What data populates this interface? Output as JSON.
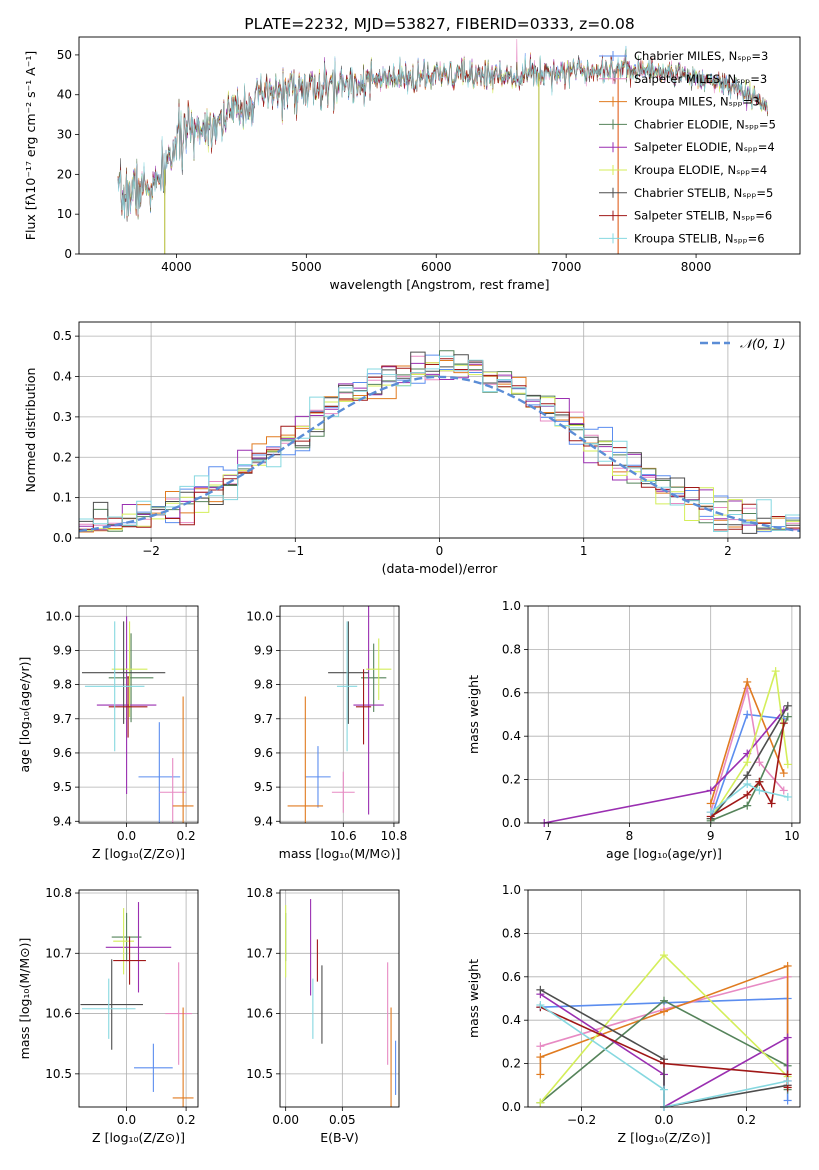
{
  "colors": {
    "Chabrier MILES": "#5b8def",
    "Salpeter MILES": "#e78ac3",
    "Kroupa MILES": "#e07b20",
    "Chabrier ELODIE": "#55835a",
    "Salpeter ELODIE": "#9a2fb1",
    "Kroupa ELODIE": "#d4ee5a",
    "Chabrier STELIB": "#4d4d4d",
    "Salpeter STELIB": "#a01818",
    "Kroupa STELIB": "#86d8e0"
  },
  "chart_data": [
    {
      "id": "spectrum",
      "type": "line",
      "title": "PLATE=2232, MJD=53827, FIBERID=0333, z=0.08",
      "xlabel": "wavelength [Angstrom, rest frame]",
      "ylabel": "Flux [fλ10⁻¹⁷ erg cm⁻² s⁻¹ A⁻¹]",
      "xlim": [
        3250,
        8800
      ],
      "ylim": [
        0,
        54.5
      ],
      "xticks": [
        4000,
        5000,
        6000,
        7000,
        8000
      ],
      "yticks": [
        0,
        10,
        20,
        30,
        40,
        50
      ],
      "grid": false,
      "legend_position": "right",
      "series": [
        {
          "name": "Chabrier MILES, Nₛₚₚ=3"
        },
        {
          "name": "Salpeter MILES, Nₛₚₚ=3"
        },
        {
          "name": "Kroupa MILES, Nₛₚₚ=3"
        },
        {
          "name": "Chabrier ELODIE, Nₛₚₚ=5"
        },
        {
          "name": "Salpeter ELODIE, Nₛₚₚ=4"
        },
        {
          "name": "Kroupa ELODIE, Nₛₚₚ=4"
        },
        {
          "name": "Chabrier STELIB, Nₛₚₚ=5"
        },
        {
          "name": "Salpeter STELIB, Nₛₚₚ=6"
        },
        {
          "name": "Kroupa STELIB, Nₛₚₚ=6"
        }
      ],
      "continuum": [
        [
          3550,
          14
        ],
        [
          3700,
          16
        ],
        [
          3850,
          17
        ],
        [
          3950,
          24
        ],
        [
          4000,
          28
        ],
        [
          4100,
          31
        ],
        [
          4300,
          33
        ],
        [
          4500,
          37
        ],
        [
          4700,
          40
        ],
        [
          4900,
          41.5
        ],
        [
          5100,
          41
        ],
        [
          5300,
          43
        ],
        [
          5500,
          43.5
        ],
        [
          5800,
          44
        ],
        [
          6000,
          44.5
        ],
        [
          6200,
          45
        ],
        [
          6500,
          45
        ],
        [
          6800,
          45.5
        ],
        [
          7000,
          46
        ],
        [
          7200,
          46.5
        ],
        [
          7400,
          46.5
        ],
        [
          7700,
          46
        ],
        [
          8000,
          44.5
        ],
        [
          8300,
          42
        ],
        [
          8550,
          37
        ]
      ],
      "spikes_down": [
        3910,
        6790,
        7400
      ],
      "spike_up": 6620
    },
    {
      "id": "residuals",
      "type": "step",
      "xlabel": "(data-model)/error",
      "ylabel": "Normed distribution",
      "xlim": [
        -2.5,
        2.5
      ],
      "ylim": [
        0,
        0.535
      ],
      "xticks": [
        -2,
        -1,
        0,
        1,
        2
      ],
      "yticks": [
        0.0,
        0.1,
        0.2,
        0.3,
        0.4,
        0.5
      ],
      "grid": true,
      "legend_position": "top-right",
      "reference_curve": {
        "name": "𝒩(0, 1)",
        "type": "gaussian",
        "mean": 0,
        "sigma": 1
      },
      "bin_width": 0.1,
      "bin_start": -2.5
    },
    {
      "id": "age-vs-Z",
      "type": "errorbar",
      "xlabel": "Z [log₁₀(Z/Z⊙)]",
      "ylabel": "age  [log₁₀(age/yr)]",
      "xlim": [
        -0.16,
        0.24
      ],
      "ylim": [
        9.395,
        10.03
      ],
      "xticks": [
        0.0,
        0.2
      ],
      "yticks": [
        9.4,
        9.5,
        9.6,
        9.7,
        9.8,
        9.9,
        10.0
      ],
      "grid": true,
      "points": [
        {
          "series": "Chabrier MILES",
          "x": 0.11,
          "y": 9.53,
          "xerr": 0.07,
          "yerr": 0.16
        },
        {
          "series": "Salpeter MILES",
          "x": 0.155,
          "y": 9.485,
          "xerr": 0.045,
          "yerr": 0.1
        },
        {
          "series": "Kroupa MILES",
          "x": 0.19,
          "y": 9.445,
          "xerr": 0.035,
          "yerr": 0.32
        },
        {
          "series": "Chabrier ELODIE",
          "x": 0.015,
          "y": 9.82,
          "xerr": 0.075,
          "yerr": 0.13
        },
        {
          "series": "Salpeter ELODIE",
          "x": 0.0,
          "y": 9.74,
          "xerr": 0.1,
          "yerr": 0.26
        },
        {
          "series": "Kroupa ELODIE",
          "x": 0.01,
          "y": 9.845,
          "xerr": 0.06,
          "yerr": 0.14
        },
        {
          "series": "Chabrier STELIB",
          "x": -0.01,
          "y": 9.835,
          "xerr": 0.14,
          "yerr": 0.15
        },
        {
          "series": "Salpeter STELIB",
          "x": 0.005,
          "y": 9.735,
          "xerr": 0.065,
          "yerr": 0.09
        },
        {
          "series": "Kroupa STELIB",
          "x": -0.04,
          "y": 9.795,
          "xerr": 0.1,
          "yerr": 0.19
        }
      ]
    },
    {
      "id": "age-vs-mass",
      "type": "errorbar",
      "xlabel": "mass [log₁₀(M/M⊙)]",
      "xlim": [
        10.35,
        10.82
      ],
      "ylim": [
        9.395,
        10.03
      ],
      "xticks": [
        10.6,
        10.8
      ],
      "yticks": [
        9.4,
        9.5,
        9.6,
        9.7,
        9.8,
        9.9,
        10.0
      ],
      "grid": true,
      "points": [
        {
          "series": "Chabrier MILES",
          "x": 10.5,
          "y": 9.53,
          "xerr": 0.05,
          "yerr": 0.09
        },
        {
          "series": "Salpeter MILES",
          "x": 10.6,
          "y": 9.485,
          "xerr": 0.045,
          "yerr": 0.06
        },
        {
          "series": "Kroupa MILES",
          "x": 10.45,
          "y": 9.445,
          "xerr": 0.07,
          "yerr": 0.32
        },
        {
          "series": "Chabrier ELODIE",
          "x": 10.72,
          "y": 9.82,
          "xerr": 0.05,
          "yerr": 0.1
        },
        {
          "series": "Salpeter ELODIE",
          "x": 10.7,
          "y": 9.74,
          "xerr": 0.06,
          "yerr": 0.32
        },
        {
          "series": "Kroupa ELODIE",
          "x": 10.74,
          "y": 9.845,
          "xerr": 0.05,
          "yerr": 0.09
        },
        {
          "series": "Chabrier STELIB",
          "x": 10.62,
          "y": 9.835,
          "xerr": 0.08,
          "yerr": 0.15
        },
        {
          "series": "Salpeter STELIB",
          "x": 10.68,
          "y": 9.735,
          "xerr": 0.03,
          "yerr": 0.11
        },
        {
          "series": "Kroupa STELIB",
          "x": 10.615,
          "y": 9.795,
          "xerr": 0.04,
          "yerr": 0.19
        }
      ]
    },
    {
      "id": "weight-vs-age",
      "type": "line",
      "xlabel": "age  [log₁₀(age/yr)]",
      "ylabel": "mass weight",
      "xlim": [
        6.75,
        10.1
      ],
      "ylim": [
        0,
        1.0
      ],
      "xticks": [
        7,
        8,
        9,
        10
      ],
      "yticks": [
        0.0,
        0.2,
        0.4,
        0.6,
        0.8,
        1.0
      ],
      "grid": true,
      "series": [
        {
          "series": "Chabrier MILES",
          "points": [
            [
              9.0,
              0.02
            ],
            [
              9.45,
              0.5
            ],
            [
              9.9,
              0.48
            ]
          ]
        },
        {
          "series": "Salpeter MILES",
          "points": [
            [
              9.0,
              0.05
            ],
            [
              9.45,
              0.62
            ],
            [
              9.6,
              0.28
            ],
            [
              9.9,
              0.15
            ]
          ]
        },
        {
          "series": "Kroupa MILES",
          "points": [
            [
              9.0,
              0.09
            ],
            [
              9.45,
              0.65
            ],
            [
              9.9,
              0.23
            ]
          ]
        },
        {
          "series": "Chabrier ELODIE",
          "points": [
            [
              9.0,
              0.01
            ],
            [
              9.45,
              0.08
            ],
            [
              9.6,
              0.19
            ],
            [
              9.95,
              0.49
            ]
          ]
        },
        {
          "series": "Salpeter ELODIE",
          "points": [
            [
              6.95,
              0.0
            ],
            [
              9.0,
              0.15
            ],
            [
              9.45,
              0.32
            ],
            [
              9.9,
              0.52
            ]
          ]
        },
        {
          "series": "Kroupa ELODIE",
          "points": [
            [
              9.0,
              0.02
            ],
            [
              9.45,
              0.28
            ],
            [
              9.8,
              0.7
            ],
            [
              9.95,
              0.27
            ]
          ]
        },
        {
          "series": "Chabrier STELIB",
          "points": [
            [
              9.0,
              0.02
            ],
            [
              9.45,
              0.22
            ],
            [
              9.95,
              0.54
            ]
          ]
        },
        {
          "series": "Salpeter STELIB",
          "points": [
            [
              9.0,
              0.03
            ],
            [
              9.45,
              0.13
            ],
            [
              9.6,
              0.19
            ],
            [
              9.75,
              0.09
            ],
            [
              9.9,
              0.46
            ]
          ]
        },
        {
          "series": "Kroupa STELIB",
          "points": [
            [
              9.0,
              0.05
            ],
            [
              9.45,
              0.18
            ],
            [
              9.6,
              0.15
            ],
            [
              9.95,
              0.12
            ]
          ]
        }
      ]
    },
    {
      "id": "mass-vs-Z",
      "type": "errorbar",
      "xlabel": "Z [log₁₀(Z/Z⊙)]",
      "ylabel": "mass [log₁₀(M/M⊙)]",
      "xlim": [
        -0.16,
        0.24
      ],
      "ylim": [
        10.445,
        10.805
      ],
      "xticks": [
        0.0,
        0.2
      ],
      "yticks": [
        10.5,
        10.6,
        10.7,
        10.8
      ],
      "grid": true,
      "points": [
        {
          "series": "Chabrier MILES",
          "x": 0.09,
          "y": 10.51,
          "xerr": 0.065,
          "yerr": 0.04
        },
        {
          "series": "Salpeter MILES",
          "x": 0.175,
          "y": 10.6,
          "xerr": 0.045,
          "yerr": 0.085
        },
        {
          "series": "Kroupa MILES",
          "x": 0.19,
          "y": 10.46,
          "xerr": 0.035,
          "yerr": 0.15
        },
        {
          "series": "Chabrier ELODIE",
          "x": 0.0,
          "y": 10.727,
          "xerr": 0.05,
          "yerr": 0.04
        },
        {
          "series": "Salpeter ELODIE",
          "x": 0.04,
          "y": 10.71,
          "xerr": 0.11,
          "yerr": 0.075
        },
        {
          "series": "Kroupa ELODIE",
          "x": -0.01,
          "y": 10.72,
          "xerr": 0.035,
          "yerr": 0.055
        },
        {
          "series": "Chabrier STELIB",
          "x": -0.05,
          "y": 10.615,
          "xerr": 0.105,
          "yerr": 0.075
        },
        {
          "series": "Salpeter STELIB",
          "x": 0.01,
          "y": 10.688,
          "xerr": 0.055,
          "yerr": 0.04
        },
        {
          "series": "Kroupa STELIB",
          "x": -0.06,
          "y": 10.608,
          "xerr": 0.09,
          "yerr": 0.05
        }
      ]
    },
    {
      "id": "mass-vs-EBV",
      "type": "errorbar",
      "xlabel": "E(B-V)",
      "xlim": [
        -0.005,
        0.1
      ],
      "ylim": [
        10.445,
        10.805
      ],
      "xticks": [
        0.0,
        0.05
      ],
      "yticks": [
        10.5,
        10.6,
        10.7,
        10.8
      ],
      "grid": true,
      "points": [
        {
          "series": "Chabrier MILES",
          "x": 0.097,
          "y": 10.51,
          "xerr": 0,
          "yerr": 0.045
        },
        {
          "series": "Salpeter MILES",
          "x": 0.09,
          "y": 10.6,
          "xerr": 0,
          "yerr": 0.085
        },
        {
          "series": "Kroupa MILES",
          "x": 0.093,
          "y": 10.46,
          "xerr": 0,
          "yerr": 0.15
        },
        {
          "series": "Chabrier ELODIE",
          "x": 0.0,
          "y": 10.727,
          "xerr": 0,
          "yerr": 0.04
        },
        {
          "series": "Salpeter ELODIE",
          "x": 0.022,
          "y": 10.71,
          "xerr": 0,
          "yerr": 0.08
        },
        {
          "series": "Kroupa ELODIE",
          "x": 0.0,
          "y": 10.72,
          "xerr": 0,
          "yerr": 0.06
        },
        {
          "series": "Chabrier STELIB",
          "x": 0.032,
          "y": 10.615,
          "xerr": 0,
          "yerr": 0.065
        },
        {
          "series": "Salpeter STELIB",
          "x": 0.028,
          "y": 10.688,
          "xerr": 0,
          "yerr": 0.035
        },
        {
          "series": "Kroupa STELIB",
          "x": 0.024,
          "y": 10.608,
          "xerr": 0,
          "yerr": 0.05
        }
      ]
    },
    {
      "id": "weight-vs-Z",
      "type": "line",
      "xlabel": "Z [log₁₀(Z/Z⊙)]",
      "ylabel": "mass weight",
      "xlim": [
        -0.33,
        0.33
      ],
      "ylim": [
        0,
        1.0
      ],
      "xticks": [
        -0.2,
        0.0,
        0.2
      ],
      "yticks": [
        0.0,
        0.2,
        0.4,
        0.6,
        0.8,
        1.0
      ],
      "grid": true,
      "series": [
        {
          "series": "Chabrier MILES",
          "points": [
            [
              -0.3,
              0.46
            ],
            [
              0.0,
              0.48
            ],
            [
              0.3,
              0.5
            ],
            [
              0.3,
              0.03
            ]
          ]
        },
        {
          "series": "Salpeter MILES",
          "points": [
            [
              -0.3,
              0.28
            ],
            [
              0.0,
              0.45
            ],
            [
              0.3,
              0.6
            ],
            [
              0.3,
              0.1
            ]
          ]
        },
        {
          "series": "Kroupa MILES",
          "points": [
            [
              -0.3,
              0.15
            ],
            [
              -0.3,
              0.23
            ],
            [
              0.0,
              0.44
            ],
            [
              0.3,
              0.65
            ],
            [
              0.3,
              0.09
            ]
          ]
        },
        {
          "series": "Chabrier ELODIE",
          "points": [
            [
              -0.3,
              0.02
            ],
            [
              0.0,
              0.49
            ],
            [
              0.3,
              0.19
            ],
            [
              0.3,
              0.08
            ]
          ]
        },
        {
          "series": "Salpeter ELODIE",
          "points": [
            [
              -0.3,
              0.52
            ],
            [
              0.0,
              0.15
            ],
            [
              0.0,
              0.0
            ],
            [
              0.3,
              0.32
            ],
            [
              0.3,
              0.12
            ]
          ]
        },
        {
          "series": "Kroupa ELODIE",
          "points": [
            [
              -0.3,
              0.02
            ],
            [
              0.0,
              0.7
            ],
            [
              0.3,
              0.14
            ]
          ]
        },
        {
          "series": "Chabrier STELIB",
          "points": [
            [
              -0.3,
              0.54
            ],
            [
              0.0,
              0.22
            ],
            [
              0.0,
              0.0
            ],
            [
              0.3,
              0.1
            ]
          ]
        },
        {
          "series": "Salpeter STELIB",
          "points": [
            [
              -0.3,
              0.46
            ],
            [
              0.0,
              0.2
            ],
            [
              0.3,
              0.15
            ],
            [
              0.3,
              0.09
            ]
          ]
        },
        {
          "series": "Kroupa STELIB",
          "points": [
            [
              -0.3,
              0.47
            ],
            [
              0.0,
              0.08
            ],
            [
              0.0,
              0.0
            ],
            [
              0.3,
              0.12
            ]
          ]
        }
      ]
    }
  ]
}
